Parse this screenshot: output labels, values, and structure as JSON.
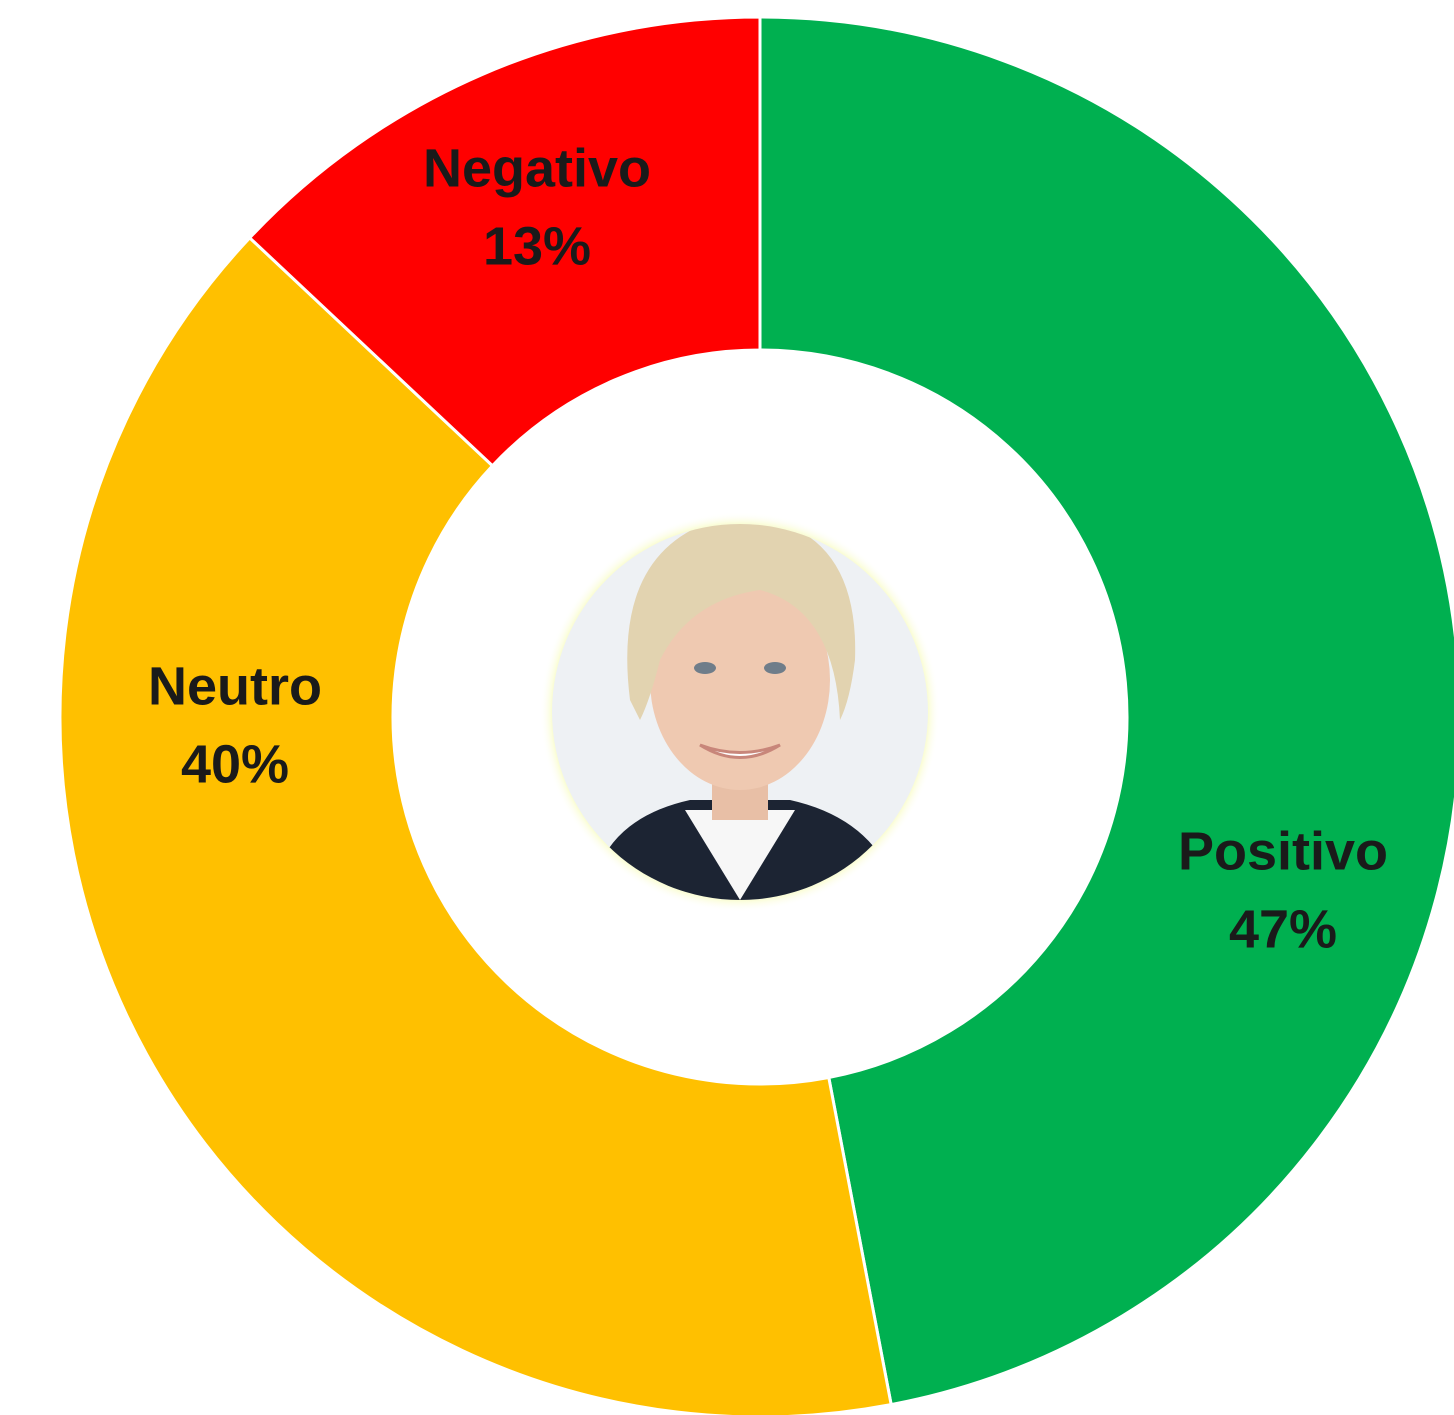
{
  "chart_data": {
    "type": "donut",
    "categories": [
      "Positivo",
      "Neutro",
      "Negativo"
    ],
    "values": [
      47,
      40,
      13
    ],
    "value_labels": [
      "47%",
      "40%",
      "13%"
    ],
    "colors": [
      "#00b050",
      "#ffc000",
      "#ff0000"
    ]
  }
}
